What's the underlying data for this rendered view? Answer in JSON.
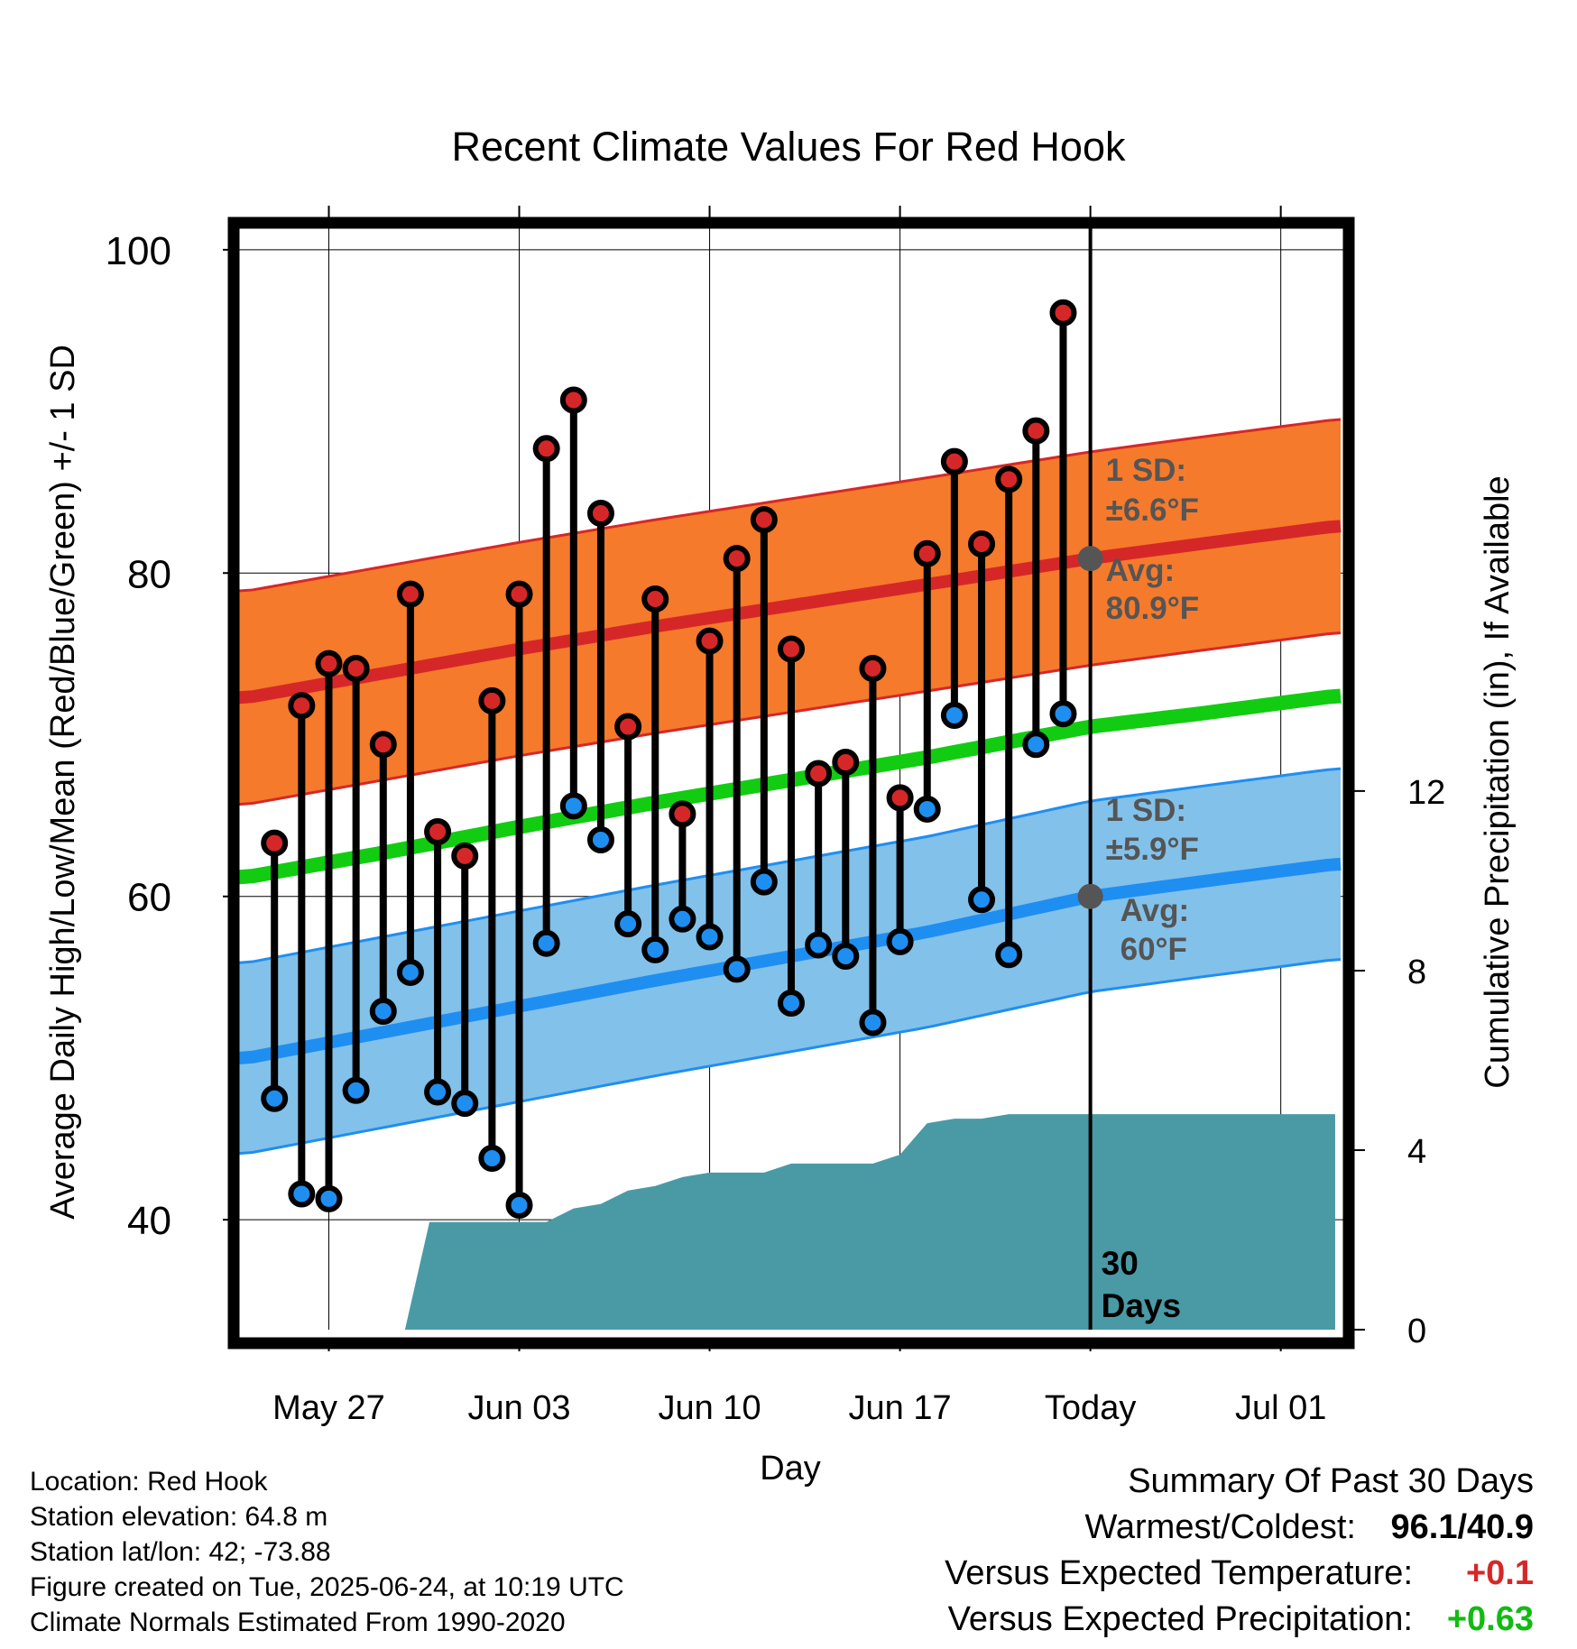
{
  "title": "Recent Climate Values For Red Hook",
  "colors": {
    "high_point": "#d62728",
    "low_point": "#1f8ef1",
    "high_band": "#f57a2b",
    "high_band_edge": "#d62728",
    "low_band": "#82c1ea",
    "low_band_edge": "#1f8ef1",
    "mean_line": "#12cc12",
    "precip_fill": "#4a9aa6",
    "annotation_gray": "#555555",
    "positive_temp": "#d62728",
    "positive_precip": "#11bb11"
  },
  "chart_data": {
    "type": "line",
    "title": "Recent Climate Values For Red Hook",
    "xlabel": "Day",
    "ylabel": "Average Daily High/Low/Mean (Red/Blue/Green) +/- 1 SD",
    "y2label": "Cumulative Precipitation (in), If Available",
    "x_ticks": [
      "May 27",
      "Jun 03",
      "Jun 10",
      "Jun 17",
      "Today",
      "Jul 01"
    ],
    "x_tick_days": [
      3,
      10,
      17,
      24,
      31,
      38
    ],
    "xlim": [
      -0.3,
      40.3
    ],
    "ylim": [
      33.2,
      101.5
    ],
    "y_ticks": [
      40,
      60,
      80,
      100
    ],
    "y2_ticks": [
      0,
      4,
      8,
      12
    ],
    "y2lim": [
      0,
      24.6
    ],
    "grid": true,
    "today_day": 31,
    "today_label": "30\nDays",
    "daily_observations": {
      "days": [
        1,
        2,
        3,
        4,
        5,
        6,
        7,
        8,
        9,
        10,
        11,
        12,
        13,
        14,
        15,
        16,
        17,
        18,
        19,
        20,
        21,
        22,
        23,
        24,
        25,
        26,
        27,
        28,
        29,
        30
      ],
      "highs": [
        63.3,
        71.8,
        74.4,
        74.1,
        69.4,
        78.7,
        64.0,
        62.5,
        72.1,
        78.7,
        87.7,
        90.7,
        83.7,
        70.5,
        78.4,
        65.1,
        75.8,
        80.9,
        83.3,
        75.3,
        67.6,
        68.3,
        74.1,
        66.1,
        81.2,
        86.9,
        81.8,
        85.8,
        88.8,
        96.1
      ],
      "lows": [
        47.5,
        41.6,
        41.3,
        48.0,
        52.9,
        55.3,
        47.9,
        47.2,
        43.8,
        40.9,
        57.1,
        65.6,
        63.5,
        58.3,
        56.7,
        58.6,
        57.5,
        55.5,
        60.9,
        53.4,
        57.0,
        56.3,
        52.2,
        57.2,
        65.4,
        71.2,
        59.8,
        56.4,
        69.4,
        71.3
      ]
    },
    "normal_series": {
      "x": [
        0,
        5,
        10,
        15,
        20,
        25,
        31,
        35,
        40
      ],
      "normal_high": [
        72.3,
        73.8,
        75.3,
        76.7,
        78.0,
        79.3,
        80.9,
        81.8,
        82.9
      ],
      "normal_low": [
        50.0,
        51.6,
        53.2,
        54.8,
        56.3,
        57.8,
        60.0,
        60.9,
        62.0
      ],
      "normal_mean": [
        61.2,
        62.7,
        64.3,
        65.8,
        67.2,
        68.6,
        70.5,
        71.3,
        72.4
      ],
      "high_sd": 6.6,
      "low_sd": 5.9
    },
    "cumulative_precip": {
      "x": [
        5.8,
        6.7,
        7,
        8,
        9,
        10,
        11,
        12,
        13,
        14,
        15,
        16,
        17,
        18,
        19,
        20,
        21,
        22,
        23,
        24,
        25,
        26,
        27,
        28,
        29,
        30,
        31,
        40
      ],
      "values": [
        0,
        2.4,
        2.4,
        2.4,
        2.4,
        2.4,
        2.4,
        2.7,
        2.8,
        3.1,
        3.2,
        3.4,
        3.5,
        3.5,
        3.5,
        3.7,
        3.7,
        3.7,
        3.7,
        3.9,
        4.6,
        4.7,
        4.7,
        4.8,
        4.8,
        4.8,
        4.8,
        4.8
      ]
    },
    "annotations": {
      "high_sd_label": "1 SD:",
      "high_sd_value": "±6.6°F",
      "high_avg_label": "Avg:",
      "high_avg_value": "80.9°F",
      "low_sd_label": "1 SD:",
      "low_sd_value": "±5.9°F",
      "low_avg_label": "Avg:",
      "low_avg_value": "60°F",
      "high_avg": 80.9,
      "low_avg": 60.0
    }
  },
  "info": {
    "location": "Location: Red Hook",
    "elevation": "Station elevation: 64.8 m",
    "latlon": "Station lat/lon: 42; -73.88",
    "created": "Figure created on Tue, 2025-06-24, at 10:19 UTC",
    "normals": "Climate Normals Estimated From 1990-2020"
  },
  "summary": {
    "heading": "Summary Of Past 30 Days",
    "warm_cold_label": "Warmest/Coldest:",
    "warm_cold_value": "96.1/40.9",
    "temp_label": "Versus Expected Temperature:",
    "temp_value": "+0.1",
    "precip_label": "Versus Expected Precipitation:",
    "precip_value": "+0.63"
  }
}
